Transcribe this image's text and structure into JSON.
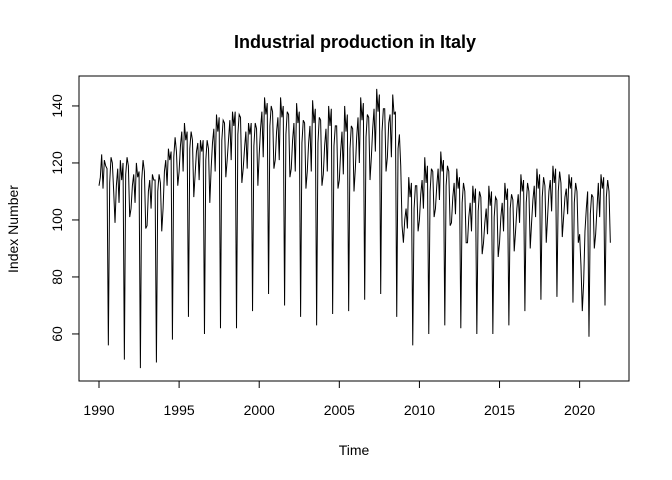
{
  "chart_data": {
    "type": "line",
    "title": "Industrial production in Italy",
    "xlabel": "Time",
    "ylabel": "Index Number",
    "xlim": [
      1990,
      2021.833
    ],
    "ylim": [
      47,
      147
    ],
    "grid": false,
    "xticks": [
      1990,
      1995,
      2000,
      2005,
      2010,
      2015,
      2020
    ],
    "yticks": [
      60,
      80,
      100,
      120,
      140
    ],
    "frequency": 12,
    "start": [
      1990,
      1
    ],
    "series": [
      {
        "values": [
          112,
          115,
          123,
          111,
          121,
          119,
          118,
          56,
          113,
          122,
          120,
          110,
          99,
          112,
          118,
          106,
          121,
          114,
          120,
          51,
          116,
          122,
          119,
          101,
          104,
          112,
          116,
          106,
          120,
          115,
          117,
          48,
          114,
          121,
          117,
          97,
          98,
          110,
          114,
          104,
          116,
          114,
          114,
          50,
          110,
          116,
          113,
          96,
          104,
          117,
          121,
          112,
          125,
          121,
          124,
          58,
          122,
          129,
          124,
          112,
          117,
          126,
          131,
          117,
          134,
          128,
          131,
          66,
          125,
          131,
          128,
          108,
          116,
          124,
          127,
          114,
          128,
          124,
          128,
          60,
          121,
          128,
          125,
          106,
          118,
          127,
          132,
          117,
          137,
          131,
          136,
          62,
          128,
          135,
          134,
          115,
          121,
          128,
          135,
          121,
          138,
          133,
          138,
          62,
          130,
          137,
          136,
          113,
          118,
          125,
          131,
          118,
          134,
          130,
          134,
          68,
          126,
          134,
          132,
          112,
          123,
          132,
          138,
          122,
          143,
          137,
          141,
          74,
          133,
          140,
          138,
          118,
          121,
          131,
          136,
          121,
          143,
          136,
          140,
          70,
          130,
          138,
          137,
          115,
          118,
          128,
          134,
          117,
          141,
          134,
          138,
          66,
          127,
          135,
          134,
          111,
          117,
          127,
          133,
          117,
          142,
          134,
          139,
          63,
          127,
          136,
          135,
          112,
          116,
          126,
          132,
          117,
          140,
          133,
          139,
          67,
          126,
          133,
          133,
          111,
          114,
          124,
          131,
          116,
          140,
          131,
          137,
          68,
          125,
          133,
          132,
          110,
          118,
          129,
          136,
          120,
          143,
          135,
          141,
          72,
          129,
          137,
          136,
          114,
          122,
          132,
          139,
          124,
          146,
          138,
          144,
          74,
          131,
          139,
          139,
          117,
          122,
          134,
          137,
          122,
          144,
          137,
          138,
          66,
          125,
          130,
          119,
          98,
          92,
          100,
          104,
          97,
          115,
          108,
          113,
          56,
          104,
          112,
          112,
          96,
          100,
          109,
          114,
          104,
          122,
          113,
          119,
          60,
          110,
          118,
          117,
          101,
          104,
          112,
          118,
          107,
          124,
          117,
          121,
          63,
          112,
          119,
          117,
          98,
          99,
          108,
          113,
          102,
          118,
          111,
          115,
          62,
          106,
          113,
          110,
          92,
          92,
          101,
          106,
          96,
          112,
          106,
          111,
          60,
          103,
          110,
          108,
          88,
          92,
          99,
          104,
          95,
          112,
          105,
          110,
          60,
          101,
          108,
          107,
          87,
          92,
          101,
          106,
          96,
          113,
          107,
          111,
          63,
          104,
          109,
          107,
          89,
          96,
          104,
          109,
          99,
          116,
          110,
          114,
          68,
          106,
          113,
          110,
          90,
          99,
          107,
          112,
          101,
          118,
          111,
          116,
          72,
          108,
          115,
          112,
          92,
          101,
          110,
          114,
          103,
          119,
          113,
          118,
          73,
          110,
          117,
          113,
          94,
          101,
          108,
          111,
          102,
          116,
          111,
          115,
          71,
          106,
          113,
          110,
          92,
          95,
          84,
          68,
          78,
          96,
          104,
          110,
          59,
          102,
          109,
          108,
          90,
          95,
          104,
          113,
          101,
          116,
          111,
          115,
          70,
          108,
          114,
          110,
          92
        ]
      }
    ]
  }
}
